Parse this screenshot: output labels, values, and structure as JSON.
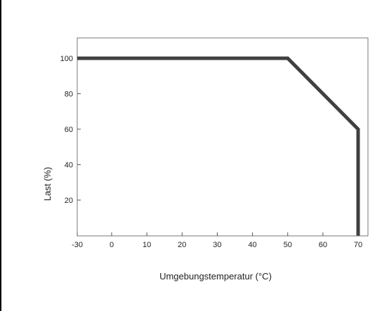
{
  "chart_data": {
    "type": "line",
    "title": "",
    "xlabel": "Umgebungstemperatur (°C)",
    "ylabel": "Last (%)",
    "xlim": [
      -30,
      75
    ],
    "ylim": [
      0,
      110
    ],
    "xticks": [
      -30,
      0,
      10,
      20,
      30,
      40,
      50,
      60,
      70
    ],
    "xtick_labels": [
      "-30",
      "0",
      "10",
      "20",
      "30",
      "40",
      "50",
      "60",
      "70"
    ],
    "yticks": [
      20,
      40,
      60,
      80,
      100
    ],
    "ytick_labels": [
      "20",
      "40",
      "60",
      "80",
      "100"
    ],
    "grid": false,
    "series": [
      {
        "x": [
          -30,
          50,
          70,
          70
        ],
        "y": [
          100,
          100,
          60,
          0
        ],
        "color": "#404040"
      }
    ]
  }
}
